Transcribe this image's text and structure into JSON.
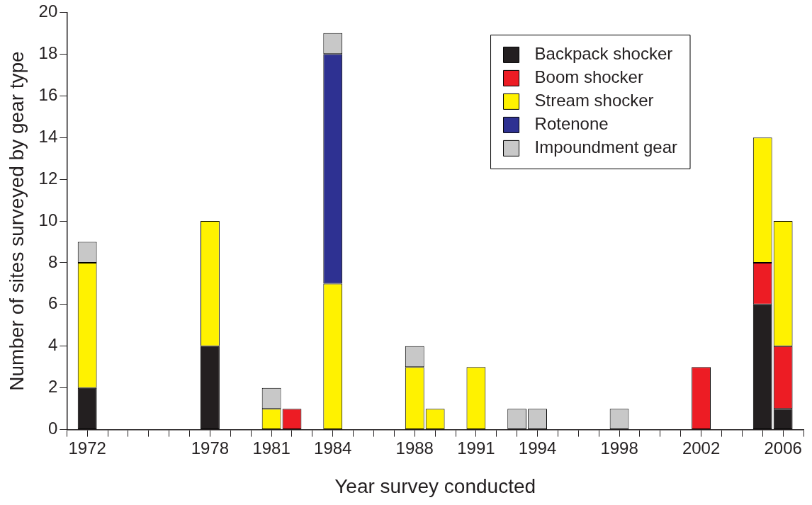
{
  "chart_data": {
    "type": "bar",
    "stacked": true,
    "xlabel": "Year survey conducted",
    "ylabel": "Number of sites surveyed by gear type",
    "x": [
      1972,
      1978,
      1981,
      1982,
      1984,
      1988,
      1989,
      1991,
      1993,
      1994,
      1998,
      2002,
      2005,
      2006
    ],
    "series": [
      {
        "name": "Backpack shocker",
        "color": "#231f20",
        "values": [
          2,
          4,
          null,
          null,
          null,
          null,
          null,
          null,
          null,
          null,
          null,
          null,
          6,
          1
        ]
      },
      {
        "name": "Boom shocker",
        "color": "#ed1c24",
        "values": [
          null,
          null,
          null,
          1,
          null,
          null,
          null,
          null,
          null,
          null,
          null,
          3,
          2,
          3
        ]
      },
      {
        "name": "Stream shocker",
        "color": "#fff200",
        "values": [
          6,
          6,
          1,
          null,
          7,
          3,
          1,
          3,
          null,
          null,
          null,
          null,
          6,
          6
        ]
      },
      {
        "name": "Rotenone",
        "color": "#2e3192",
        "values": [
          null,
          null,
          null,
          null,
          11,
          null,
          null,
          null,
          null,
          null,
          null,
          null,
          null,
          null
        ]
      },
      {
        "name": "Impoundment gear",
        "color": "#c8c8c8",
        "values": [
          1,
          null,
          1,
          null,
          1,
          1,
          null,
          null,
          1,
          1,
          1,
          null,
          null,
          null
        ]
      }
    ],
    "xlim": [
      1971,
      2007
    ],
    "xticks": [
      {
        "value": 1971,
        "label": null
      },
      1972,
      {
        "value": 1973,
        "label": null
      },
      {
        "value": 1974,
        "label": null
      },
      {
        "value": 1975,
        "label": null
      },
      {
        "value": 1976,
        "label": null
      },
      {
        "value": 1977,
        "label": null
      },
      1978,
      {
        "value": 1979,
        "label": null
      },
      {
        "value": 1980,
        "label": null
      },
      1981,
      {
        "value": 1982,
        "label": null
      },
      {
        "value": 1983,
        "label": null
      },
      1984,
      {
        "value": 1985,
        "label": null
      },
      {
        "value": 1986,
        "label": null
      },
      {
        "value": 1987,
        "label": null
      },
      1988,
      {
        "value": 1989,
        "label": null
      },
      {
        "value": 1990,
        "label": null
      },
      1991,
      {
        "value": 1992,
        "label": null
      },
      {
        "value": 1993,
        "label": null
      },
      1994,
      {
        "value": 1995,
        "label": null
      },
      {
        "value": 1996,
        "label": null
      },
      {
        "value": 1997,
        "label": null
      },
      1998,
      {
        "value": 1999,
        "label": null
      },
      {
        "value": 2000,
        "label": null
      },
      {
        "value": 2001,
        "label": null
      },
      2002,
      {
        "value": 2003,
        "label": null
      },
      {
        "value": 2004,
        "label": null
      },
      {
        "value": 2005,
        "label": null
      },
      2006,
      {
        "value": 2007,
        "label": null
      }
    ],
    "ylim": [
      0,
      20
    ],
    "yticks": [
      0,
      2,
      4,
      6,
      8,
      10,
      12,
      14,
      16,
      18,
      20
    ],
    "grid": false,
    "legend": "top right"
  }
}
